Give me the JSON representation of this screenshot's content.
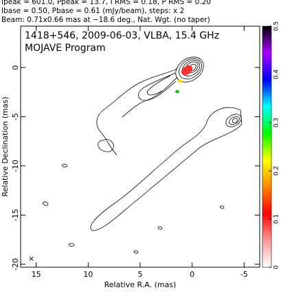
{
  "chart_data": {
    "type": "contour",
    "header": [
      "Ipeak = 601.0, Ppeak = 13.7, I RMS = 0.18, P RMS = 0.20",
      "Ibase = 0.50, Pbase = 0.61 (mJy/beam), steps: x 2",
      "Beam: 0.71x0.66 mas at −18.6 deg., Nat. Wgt. (no taper)"
    ],
    "title": "1418+546, 2009-06-03, VLBA, 15.4 GHz",
    "subtitle": "MOJAVE Program",
    "xlabel": "Relative R.A. (mas)",
    "ylabel": "Relative Declination (mas)",
    "xlim": [
      16.5,
      -6.5
    ],
    "xticks": [
      15,
      10,
      5,
      0,
      -5
    ],
    "ylim": [
      -20.3,
      4.2
    ],
    "yticks": [
      0,
      -5,
      -10,
      -15,
      -20
    ],
    "colorbar": {
      "lim": [
        0,
        0.5
      ],
      "ticks": [
        0,
        0.1,
        0.2,
        0.3,
        0.4,
        0.5
      ],
      "colors": [
        "#ffffff",
        "#ff9999",
        "#ff0000",
        "#ff8800",
        "#ffff00",
        "#00ff00",
        "#00ffff",
        "#0000ff",
        "#aa00ff",
        "#000000"
      ]
    }
  }
}
